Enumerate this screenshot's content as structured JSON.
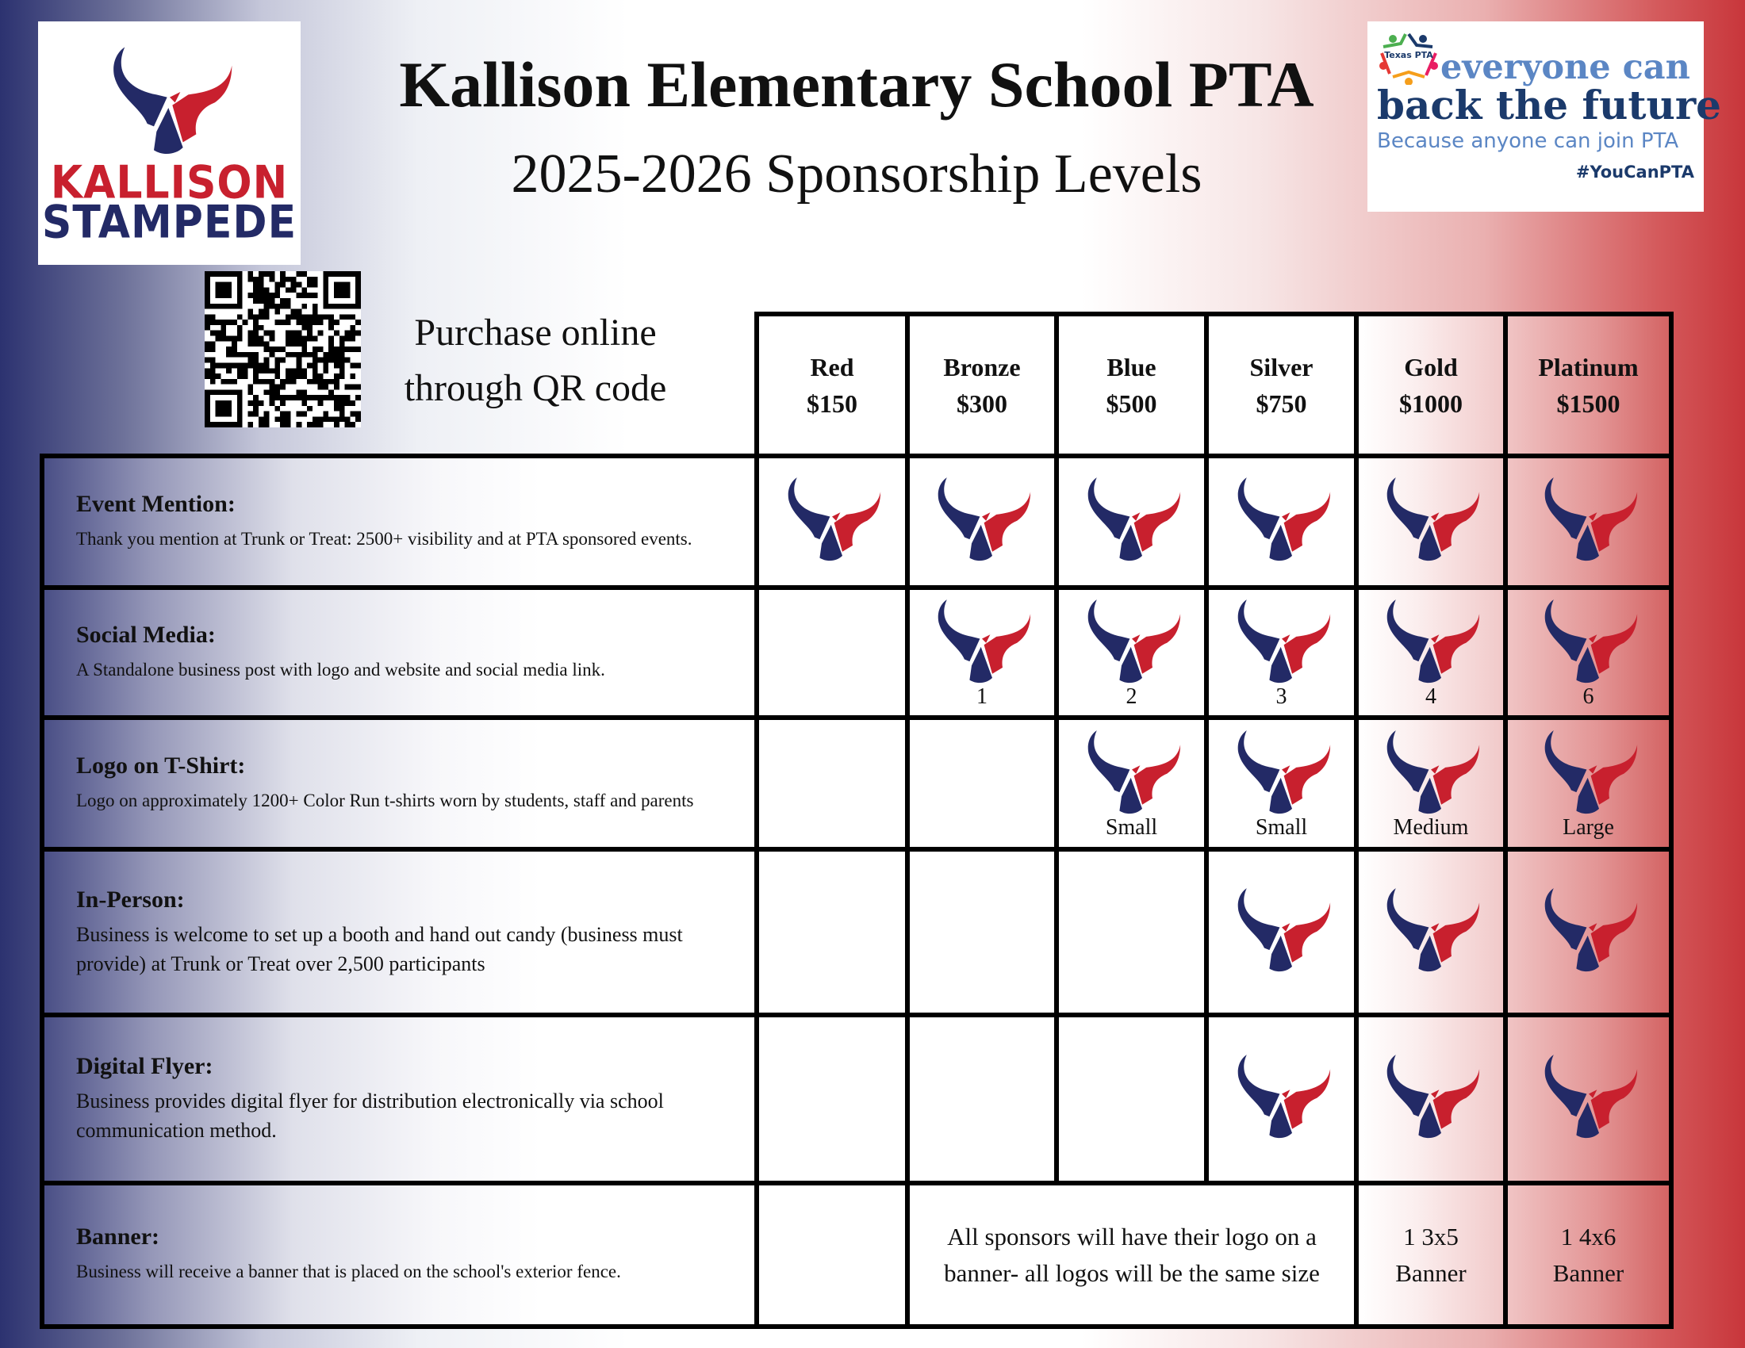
{
  "header": {
    "title": "Kallison Elementary School PTA",
    "subtitle": "2025-2026 Sponsorship Levels",
    "purchase_line1": "Purchase online",
    "purchase_line2": "through QR code"
  },
  "left_logo": {
    "line1": "KALLISON",
    "line2": "STAMPEDE",
    "colors": {
      "navy": "#232a66",
      "red": "#c8202e"
    }
  },
  "right_logo": {
    "line1": "everyone can",
    "line2": "back the future",
    "line3": "Because anyone can join PTA",
    "hashtag": "#YouCanPTA",
    "badge": "Texas PTA",
    "colors": {
      "light_blue": "#5b86c4",
      "dark_blue": "#1b3a6b"
    }
  },
  "qr_icon": "qr-code",
  "tiers": [
    {
      "name": "Red",
      "price": "$150"
    },
    {
      "name": "Bronze",
      "price": "$300"
    },
    {
      "name": "Blue",
      "price": "$500"
    },
    {
      "name": "Silver",
      "price": "$750"
    },
    {
      "name": "Gold",
      "price": "$1000"
    },
    {
      "name": "Platinum",
      "price": "$1500"
    }
  ],
  "rows": [
    {
      "title": "Event Mention:",
      "desc": "Thank you mention at Trunk or Treat: 2500+ visibility and at PTA sponsored events.",
      "cells": [
        {
          "logo": true,
          "caption": ""
        },
        {
          "logo": true,
          "caption": ""
        },
        {
          "logo": true,
          "caption": ""
        },
        {
          "logo": true,
          "caption": ""
        },
        {
          "logo": true,
          "caption": ""
        },
        {
          "logo": true,
          "caption": ""
        }
      ]
    },
    {
      "title": "Social Media:",
      "desc": "A Standalone business post with logo and website and social media link.",
      "cells": [
        {
          "logo": false,
          "caption": ""
        },
        {
          "logo": true,
          "caption": "1"
        },
        {
          "logo": true,
          "caption": "2"
        },
        {
          "logo": true,
          "caption": "3"
        },
        {
          "logo": true,
          "caption": "4"
        },
        {
          "logo": true,
          "caption": "6"
        }
      ]
    },
    {
      "title": "Logo on T-Shirt:",
      "desc": "Logo on approximately 1200+ Color Run t-shirts worn by students, staff and parents",
      "cells": [
        {
          "logo": false,
          "caption": ""
        },
        {
          "logo": false,
          "caption": ""
        },
        {
          "logo": true,
          "caption": "Small"
        },
        {
          "logo": true,
          "caption": "Small"
        },
        {
          "logo": true,
          "caption": "Medium"
        },
        {
          "logo": true,
          "caption": "Large"
        }
      ]
    },
    {
      "title": "In-Person:",
      "desc": "Business is welcome to set up a booth and hand out candy (business must provide) at Trunk or Treat over 2,500 participants",
      "big": true,
      "cells": [
        {
          "logo": false,
          "caption": ""
        },
        {
          "logo": false,
          "caption": ""
        },
        {
          "logo": false,
          "caption": ""
        },
        {
          "logo": true,
          "caption": ""
        },
        {
          "logo": true,
          "caption": ""
        },
        {
          "logo": true,
          "caption": ""
        }
      ]
    },
    {
      "title": "Digital Flyer:",
      "desc": "Business provides digital flyer for distribution electronically via school communication method.",
      "big": true,
      "cells": [
        {
          "logo": false,
          "caption": ""
        },
        {
          "logo": false,
          "caption": ""
        },
        {
          "logo": false,
          "caption": ""
        },
        {
          "logo": true,
          "caption": ""
        },
        {
          "logo": true,
          "caption": ""
        },
        {
          "logo": true,
          "caption": ""
        }
      ]
    }
  ],
  "banner_row": {
    "title": "Banner:",
    "desc": "Business will receive a banner that is placed on the school's exterior fence.",
    "red": "",
    "merged_line1": "All sponsors will have their logo on a",
    "merged_line2": "banner- all logos will be the same size",
    "gold_line1": "1 3x5",
    "gold_line2": "Banner",
    "platinum_line1": "1 4x6",
    "platinum_line2": "Banner"
  }
}
